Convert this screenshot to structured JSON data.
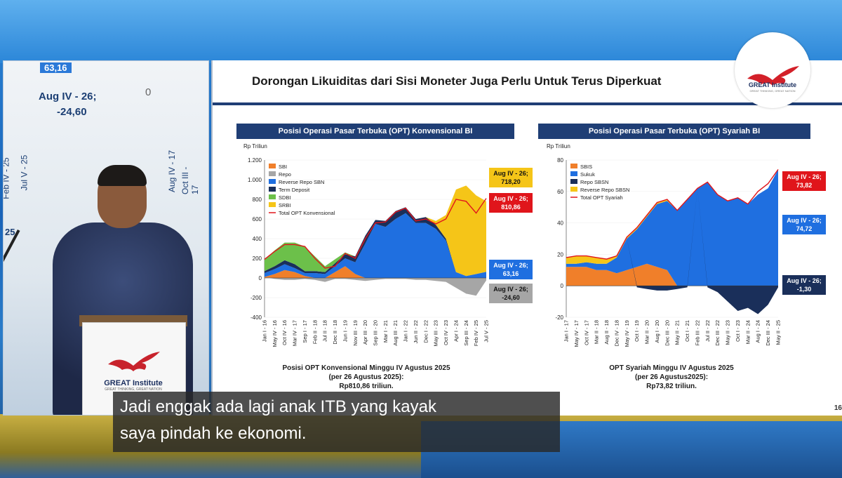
{
  "camera": {
    "slide_glimpse": {
      "label_top": "63,16",
      "callout_line1": "Aug IV - 26;",
      "callout_line2": "-24,60",
      "zero_tick": "0",
      "side_ticks": [
        "Feb IV - 25",
        "Jul V - 25",
        "Aug IV - 17",
        "Oct III - 17"
      ],
      "left_tick": "25"
    },
    "podium": {
      "brand": "GREAT Institute",
      "tagline": "GREAT THINKING, GREAT NATION"
    }
  },
  "slide": {
    "title": "Dorongan Likuiditas dari Sisi Moneter Juga Perlu Untuk Terus Diperkuat",
    "logo": {
      "name": "GREAT Institute",
      "tagline": "GREAT THINKING, GREAT NATION"
    },
    "page_number": "16",
    "left_panel": {
      "header": "Posisi Operasi Pasar Terbuka (OPT) Konvensional BI",
      "unit": "Rp Triliun",
      "caption": [
        "Posisi OPT Konvensional Minggu IV Agustus 2025",
        "(per 26 Agustus 2025):",
        "Rp810,86 triliun."
      ],
      "callouts": [
        {
          "line1": "Aug IV - 26;",
          "line2": "718,20",
          "bg": "#f5c518",
          "fg": "#111111"
        },
        {
          "line1": "Aug IV - 26;",
          "line2": "810,86",
          "bg": "#e0151b",
          "fg": "#ffffff"
        },
        {
          "line1": "Aug IV - 26;",
          "line2": "63,16",
          "bg": "#1f6fe0",
          "fg": "#ffffff"
        },
        {
          "line1": "Aug IV - 26;",
          "line2": "-24,60",
          "bg": "#a6a6a6",
          "fg": "#111111"
        }
      ]
    },
    "right_panel": {
      "header": "Posisi Operasi Pasar Terbuka (OPT) Syariah BI",
      "unit": "Rp Triliun",
      "caption": [
        "OPT Syariah Minggu IV Agustus 2025",
        "(per 26 Agustus2025):",
        "Rp73,82 triliun."
      ],
      "callouts": [
        {
          "line1": "Aug IV - 26;",
          "line2": "73,82",
          "bg": "#e0151b",
          "fg": "#ffffff"
        },
        {
          "line1": "Aug IV - 26;",
          "line2": "74,72",
          "bg": "#1f6fe0",
          "fg": "#ffffff"
        },
        {
          "line1": "Aug IV - 26;",
          "line2": "-1,30",
          "bg": "#1a2f5a",
          "fg": "#ffffff"
        }
      ]
    }
  },
  "subtitles": [
    "Jadi enggak ada lagi anak ITB yang kayak",
    "saya pindah ke ekonomi."
  ],
  "chart_data": [
    {
      "type": "area",
      "title": "Posisi Operasi Pasar Terbuka (OPT) Konvensional BI",
      "ylabel": "Rp Triliun",
      "ylim": [
        -400,
        1200
      ],
      "yticks": [
        -400,
        -200,
        0,
        200,
        400,
        600,
        800,
        1000,
        1200
      ],
      "ytick_labels": [
        "-400",
        "-200",
        "0",
        "200",
        "400",
        "600",
        "800",
        "1.000",
        "1.200"
      ],
      "xtick_labels": [
        "Jan I - 16",
        "May IV - 16",
        "Oct IV - 16",
        "Mar IV - 17",
        "Sep I - 17",
        "Feb II - 18",
        "Jul II - 18",
        "Dec II - 18",
        "Jun I - 19",
        "Nov III - 19",
        "Apr III - 20",
        "Sep III - 20",
        "Mar I - 21",
        "Aug III - 21",
        "Jan I - 22",
        "Jun II - 22",
        "Dec I - 22",
        "May III - 23",
        "Oct IV - 23",
        "Apr I - 24",
        "Sep III - 24",
        "Feb IV - 25",
        "Jul V - 25"
      ],
      "legend_position": "top-left",
      "series": [
        {
          "name": "SBI",
          "color": "#f07f2a",
          "values": [
            10,
            40,
            80,
            60,
            20,
            0,
            0,
            60,
            120,
            40,
            0,
            0,
            0,
            0,
            0,
            0,
            0,
            0,
            0,
            0,
            0,
            0,
            0
          ]
        },
        {
          "name": "Repo",
          "color": "#a6a6a6",
          "values": [
            0,
            -10,
            -20,
            -20,
            -10,
            -20,
            -40,
            -10,
            -10,
            -20,
            -30,
            -20,
            -10,
            -10,
            -10,
            -20,
            -20,
            -30,
            -40,
            -100,
            -160,
            -180,
            -25
          ]
        },
        {
          "name": "Reverse Repo SBN",
          "color": "#1f6fe0",
          "values": [
            40,
            50,
            60,
            40,
            30,
            50,
            40,
            60,
            80,
            120,
            350,
            550,
            520,
            600,
            660,
            560,
            560,
            500,
            380,
            60,
            20,
            40,
            63
          ]
        },
        {
          "name": "Term Deposit",
          "color": "#1a2f5a",
          "values": [
            20,
            30,
            40,
            40,
            20,
            20,
            20,
            30,
            40,
            60,
            80,
            40,
            60,
            80,
            60,
            40,
            60,
            40,
            20,
            0,
            0,
            0,
            0
          ]
        },
        {
          "name": "SDBI",
          "color": "#6cc04a",
          "values": [
            120,
            160,
            180,
            220,
            250,
            150,
            60,
            40,
            20,
            0,
            0,
            0,
            0,
            0,
            0,
            0,
            0,
            0,
            0,
            0,
            0,
            0,
            0
          ]
        },
        {
          "name": "SRBI",
          "color": "#f5c518",
          "values": [
            0,
            0,
            0,
            0,
            0,
            0,
            0,
            0,
            0,
            0,
            0,
            0,
            0,
            0,
            0,
            0,
            0,
            40,
            240,
            840,
            920,
            800,
            718
          ]
        },
        {
          "name": "Total OPT Konvensional",
          "color": "#e0151b",
          "values": [
            190,
            270,
            340,
            340,
            320,
            200,
            100,
            120,
            250,
            200,
            400,
            560,
            570,
            670,
            710,
            580,
            600,
            550,
            600,
            800,
            780,
            660,
            810
          ]
        }
      ]
    },
    {
      "type": "area",
      "title": "Posisi Operasi Pasar Terbuka (OPT) Syariah BI",
      "ylabel": "Rp Triliun",
      "ylim": [
        -20,
        80
      ],
      "yticks": [
        -20,
        0,
        20,
        40,
        60,
        80
      ],
      "ytick_labels": [
        "-20",
        "0",
        "20",
        "40",
        "60",
        "80"
      ],
      "xtick_labels": [
        "Jan I - 17",
        "May IV - 17",
        "Oct IV - 17",
        "Mar II - 18",
        "Aug II - 18",
        "Dec IV - 18",
        "May IV - 19",
        "Oct I - 19",
        "Mar II - 20",
        "Aug I - 20",
        "Dec III - 20",
        "May II - 21",
        "Oct I - 21",
        "Feb III - 22",
        "Jul II - 22",
        "Dec III - 22",
        "May II - 23",
        "Oct I - 23",
        "Mar II - 24",
        "Aug I - 24",
        "Dec III - 24",
        "May II - 25"
      ],
      "legend_position": "top-left",
      "series": [
        {
          "name": "SBIS",
          "color": "#f07f2a",
          "values": [
            12,
            12,
            12,
            10,
            10,
            8,
            10,
            12,
            14,
            12,
            10,
            0,
            0,
            0,
            0,
            0,
            0,
            0,
            0,
            0,
            0,
            0
          ]
        },
        {
          "name": "Sukuk",
          "color": "#1f6fe0",
          "values": [
            2,
            2,
            3,
            4,
            4,
            10,
            20,
            24,
            30,
            40,
            44,
            48,
            55,
            62,
            66,
            58,
            54,
            56,
            52,
            58,
            62,
            74
          ]
        },
        {
          "name": "Repo SBSN",
          "color": "#1a2f5a",
          "values": [
            0,
            0,
            0,
            0,
            0,
            0,
            0,
            -1,
            -2,
            -3,
            -3,
            -2,
            -1,
            0,
            -1,
            -4,
            -10,
            -16,
            -14,
            -18,
            -12,
            -1
          ]
        },
        {
          "name": "Reverse Repo SBSN",
          "color": "#f5c518",
          "values": [
            4,
            5,
            4,
            4,
            3,
            1,
            1,
            1,
            1,
            1,
            1,
            0,
            0,
            0,
            0,
            0,
            0,
            0,
            0,
            0,
            0,
            0
          ]
        },
        {
          "name": "Total OPT Syariah",
          "color": "#e0151b",
          "values": [
            18,
            19,
            19,
            18,
            17,
            19,
            31,
            37,
            45,
            53,
            55,
            48,
            55,
            62,
            66,
            58,
            54,
            56,
            52,
            60,
            65,
            74
          ]
        }
      ]
    }
  ]
}
